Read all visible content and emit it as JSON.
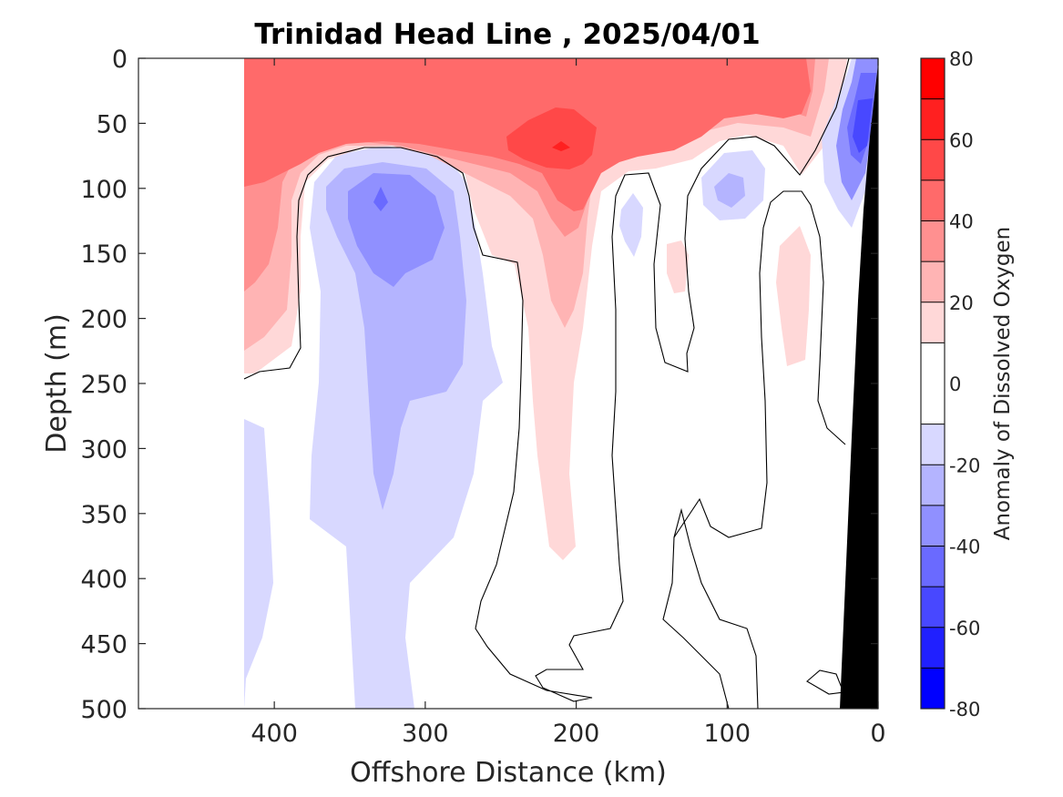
{
  "chart_data": {
    "type": "heatmap",
    "title": "Trinidad Head Line , 2025/04/01",
    "xlabel": "Offshore Distance (km)",
    "ylabel": "Depth (m)",
    "colorbar_label": "Anomaly of Dissolved Oxygen",
    "xlim": [
      490,
      0
    ],
    "ylim": [
      0,
      500
    ],
    "x_reversed": true,
    "y_reversed": true,
    "x_ticks": [
      400,
      300,
      200,
      100,
      0
    ],
    "y_ticks": [
      0,
      50,
      100,
      150,
      200,
      250,
      300,
      350,
      400,
      450,
      500
    ],
    "colorbar": {
      "range": [
        -80,
        80
      ],
      "ticks": [
        80,
        60,
        40,
        20,
        0,
        -20,
        -40,
        -60,
        -80
      ],
      "levels": [
        -80,
        -70,
        -60,
        -50,
        -40,
        -30,
        -20,
        -10,
        10,
        20,
        30,
        40,
        50,
        60,
        70,
        80
      ],
      "colors": [
        "#0000ff",
        "#2020ff",
        "#4848ff",
        "#6a6aff",
        "#9090ff",
        "#b4b4ff",
        "#d8d8ff",
        "#ffffff",
        "#ffd8d8",
        "#ffb4b4",
        "#ff9090",
        "#ff6a6a",
        "#ff4848",
        "#ff2020",
        "#ff0000"
      ]
    },
    "data_extent_km": [
      420,
      0
    ],
    "zero_contour": "black",
    "bathymetry_color": "#000000",
    "regions": [
      {
        "label": "surface maximum",
        "x_range": [
          420,
          20
        ],
        "depth_range": [
          0,
          100
        ],
        "value": 35
      },
      {
        "label": "local maximum",
        "x": 212,
        "depth": 67,
        "value": 55
      },
      {
        "label": "subsurface minimum",
        "x": 325,
        "depth": 105,
        "value": -42
      },
      {
        "label": "nearshore minimum",
        "x": 10,
        "depth": 70,
        "value": -60
      },
      {
        "label": "minimum lobe",
        "x": 100,
        "depth": 100,
        "value": -25
      },
      {
        "label": "tongue of positive anomaly",
        "x": 210,
        "depth_range": [
          150,
          380
        ],
        "value": 15
      },
      {
        "label": "band of negative anomaly",
        "x_range": [
          350,
          260
        ],
        "depth_range": [
          120,
          500
        ],
        "value": -15
      }
    ]
  }
}
